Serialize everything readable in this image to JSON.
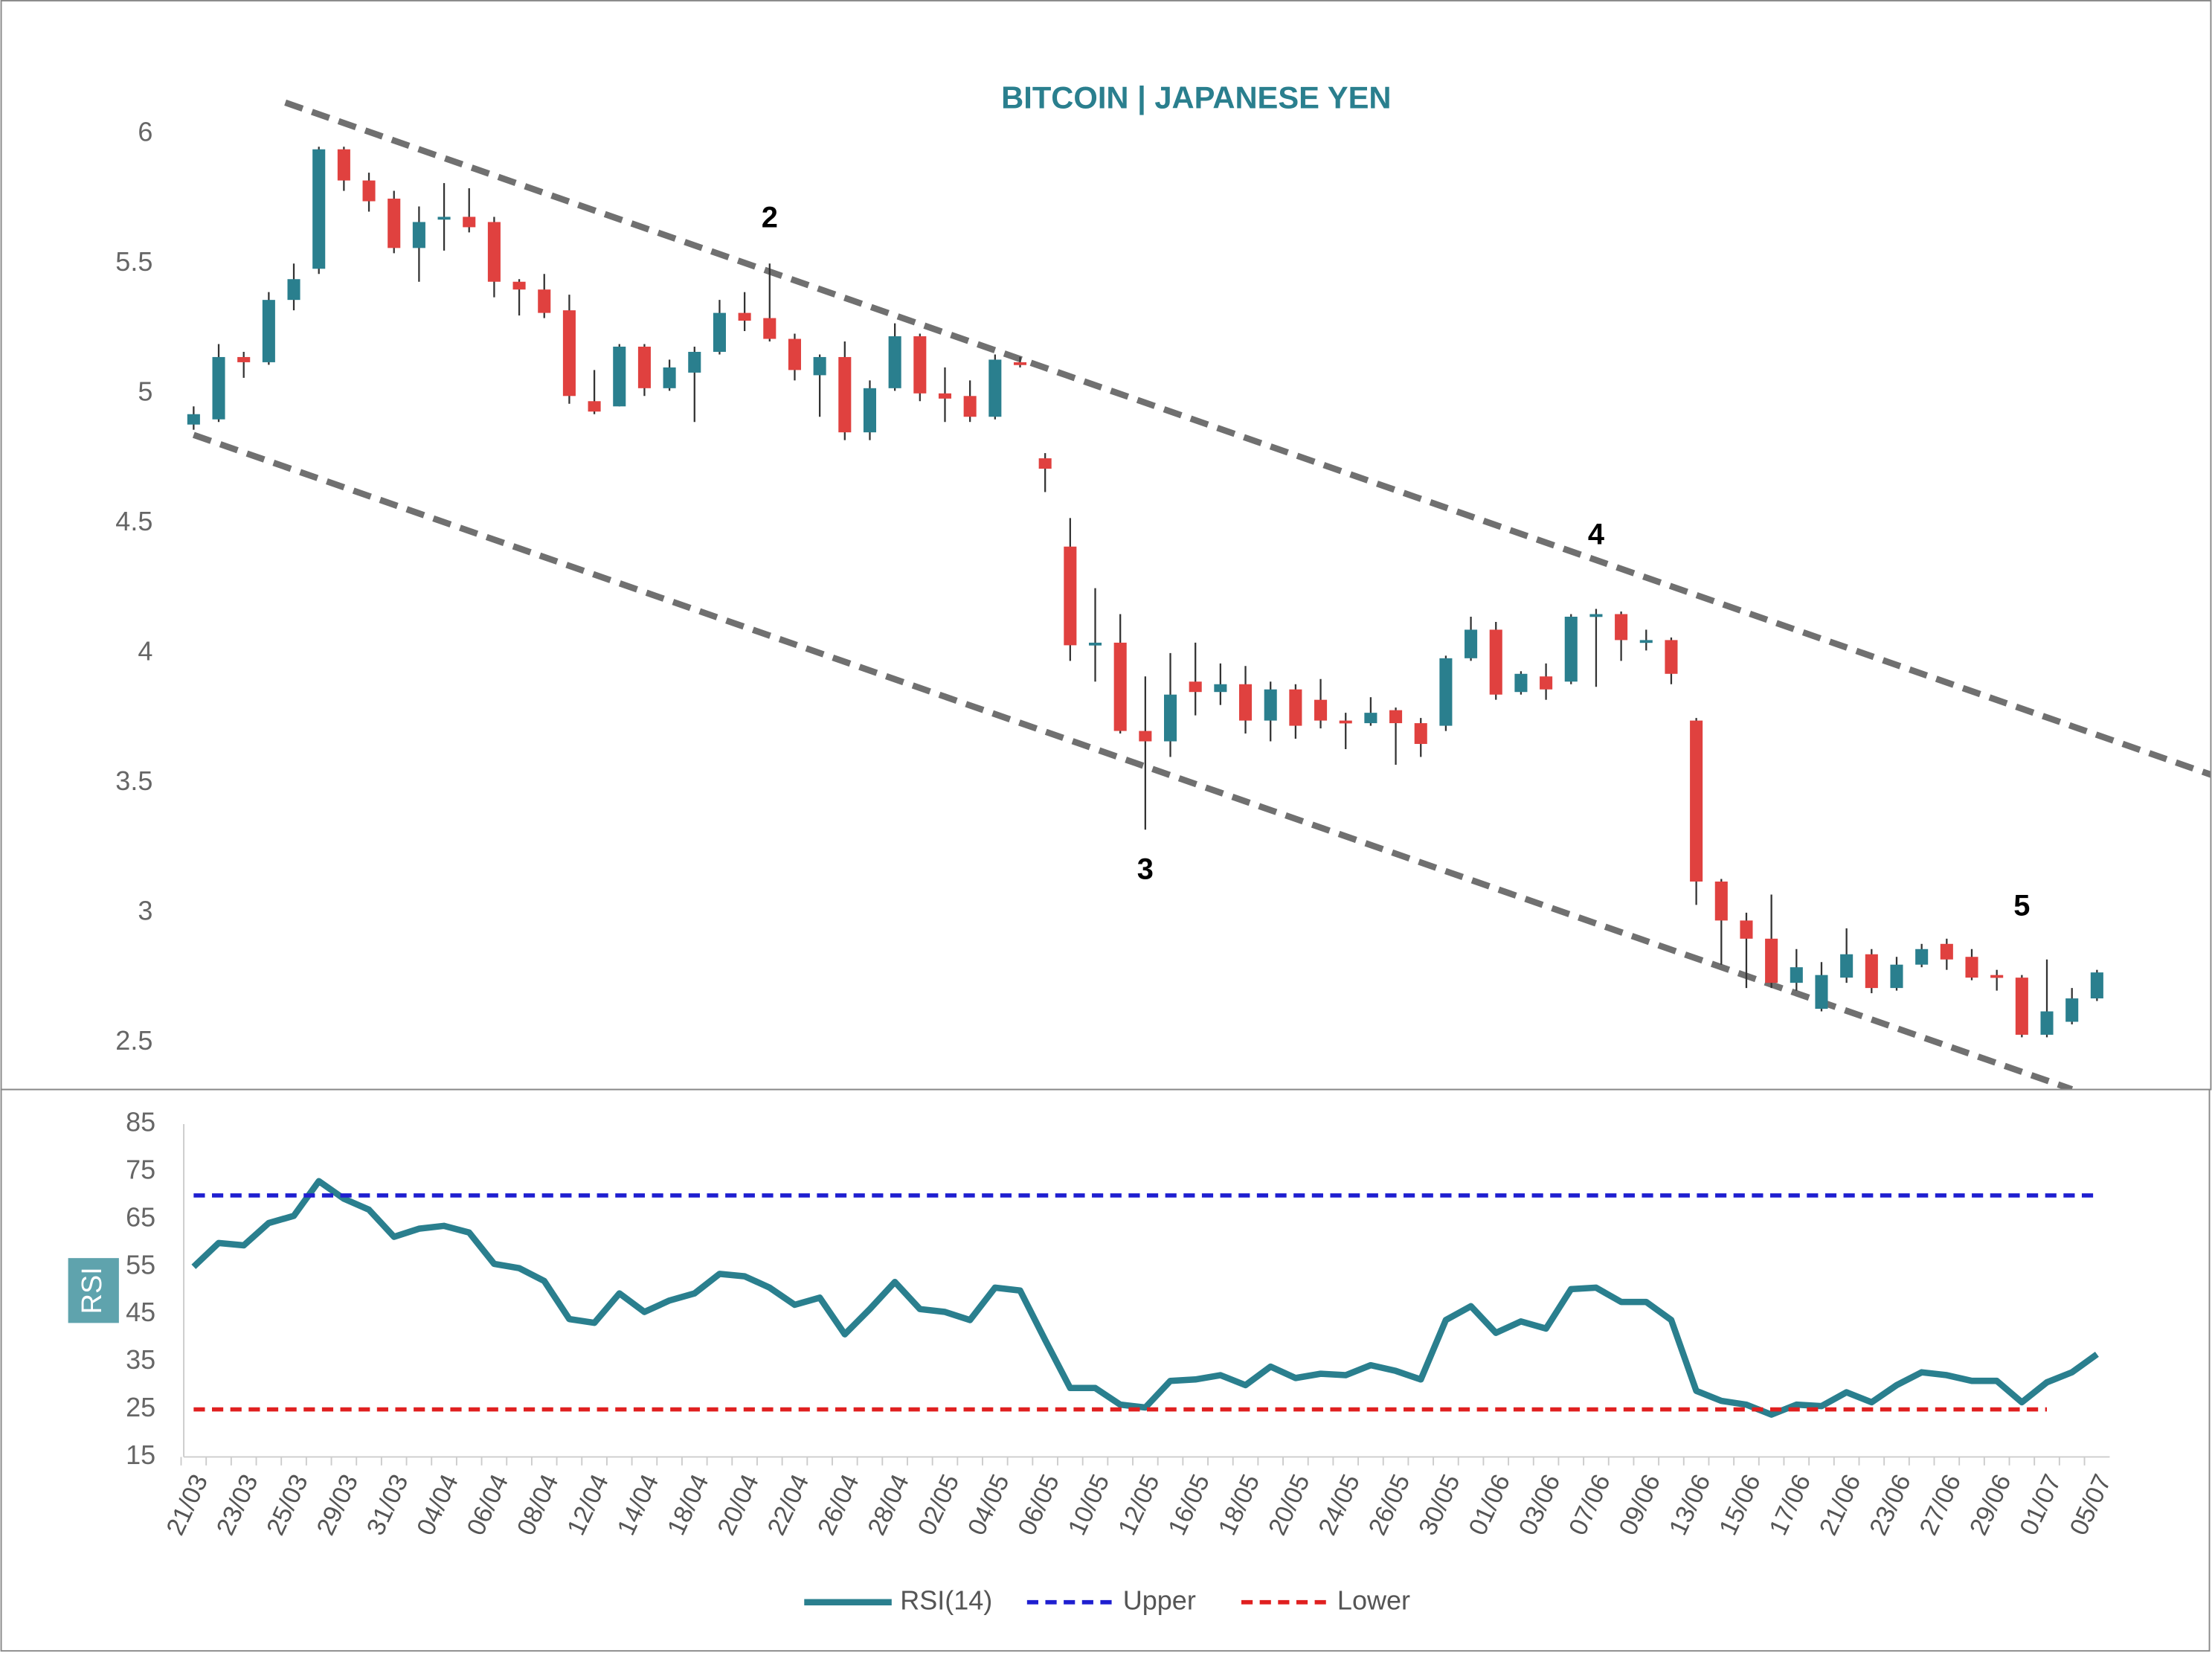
{
  "chart_data": [
    {
      "type": "candlestick",
      "title": "BITCOIN | JAPANESE YEN",
      "up_color": "#2a7f8e",
      "down_color": "#e0413f",
      "open": [
        4.88,
        4.9,
        5.14,
        5.12,
        5.36,
        5.48,
        5.94,
        5.82,
        5.75,
        5.56,
        5.67,
        5.68,
        5.66,
        5.43,
        5.4,
        5.32,
        4.97,
        4.95,
        5.18,
        5.02,
        5.08,
        5.16,
        5.31,
        5.29,
        5.21,
        5.07,
        5.14,
        4.85,
        5.02,
        5.22,
        5.0,
        4.99,
        4.91,
        5.12,
        4.75,
        4.41,
        4.03,
        4.04,
        3.7,
        3.66,
        3.89,
        3.85,
        3.88,
        3.74,
        3.86,
        3.82,
        3.74,
        3.73,
        3.78,
        3.73,
        3.72,
        3.98,
        4.09,
        3.85,
        3.91,
        3.89,
        4.14,
        4.15,
        4.04,
        4.05,
        3.74,
        3.12,
        2.97,
        2.9,
        2.73,
        2.63,
        2.75,
        2.84,
        2.71,
        2.8,
        2.88,
        2.83,
        2.76,
        2.75,
        2.53,
        2.58,
        2.67
      ],
      "high": [
        4.95,
        5.19,
        5.16,
        5.39,
        5.5,
        5.95,
        5.95,
        5.85,
        5.78,
        5.72,
        5.81,
        5.79,
        5.68,
        5.44,
        5.46,
        5.38,
        5.09,
        5.19,
        5.19,
        5.13,
        5.18,
        5.36,
        5.39,
        5.5,
        5.23,
        5.15,
        5.2,
        5.05,
        5.27,
        5.23,
        5.1,
        5.05,
        5.15,
        5.14,
        4.77,
        4.52,
        4.25,
        4.15,
        3.91,
        4.0,
        4.04,
        3.96,
        3.95,
        3.89,
        3.88,
        3.9,
        3.77,
        3.83,
        3.79,
        3.75,
        3.99,
        4.14,
        4.12,
        3.93,
        3.96,
        4.15,
        4.17,
        4.16,
        4.09,
        4.06,
        3.75,
        3.13,
        3.0,
        3.07,
        2.86,
        2.81,
        2.94,
        2.86,
        2.83,
        2.88,
        2.9,
        2.86,
        2.78,
        2.76,
        2.82,
        2.71,
        2.78
      ],
      "low": [
        4.86,
        4.89,
        5.06,
        5.11,
        5.32,
        5.46,
        5.78,
        5.7,
        5.54,
        5.43,
        5.55,
        5.62,
        5.37,
        5.3,
        5.29,
        4.96,
        4.92,
        4.95,
        4.99,
        5.01,
        4.89,
        5.15,
        5.24,
        5.2,
        5.05,
        4.91,
        4.82,
        4.82,
        5.01,
        4.97,
        4.89,
        4.89,
        4.9,
        5.1,
        4.62,
        3.97,
        3.89,
        3.69,
        3.32,
        3.6,
        3.76,
        3.8,
        3.69,
        3.66,
        3.67,
        3.71,
        3.63,
        3.72,
        3.57,
        3.6,
        3.7,
        3.97,
        3.82,
        3.84,
        3.82,
        3.88,
        3.87,
        3.97,
        4.01,
        3.88,
        3.03,
        2.8,
        2.71,
        2.71,
        2.7,
        2.62,
        2.73,
        2.69,
        2.7,
        2.79,
        2.78,
        2.74,
        2.7,
        2.52,
        2.52,
        2.57,
        2.66
      ],
      "close": [
        4.92,
        5.14,
        5.12,
        5.36,
        5.44,
        5.94,
        5.82,
        5.74,
        5.56,
        5.66,
        5.68,
        5.64,
        5.43,
        5.4,
        5.31,
        4.99,
        4.93,
        5.18,
        5.02,
        5.1,
        5.16,
        5.31,
        5.28,
        5.21,
        5.09,
        5.14,
        4.85,
        5.02,
        5.22,
        5.0,
        4.98,
        4.91,
        5.13,
        5.11,
        4.71,
        4.03,
        4.04,
        3.7,
        3.66,
        3.84,
        3.85,
        3.88,
        3.74,
        3.86,
        3.72,
        3.74,
        3.73,
        3.77,
        3.73,
        3.65,
        3.98,
        4.09,
        3.84,
        3.92,
        3.86,
        4.14,
        4.15,
        4.05,
        4.05,
        3.92,
        3.12,
        2.97,
        2.9,
        2.73,
        2.79,
        2.76,
        2.84,
        2.71,
        2.8,
        2.86,
        2.82,
        2.75,
        2.75,
        2.53,
        2.62,
        2.67,
        2.77
      ],
      "ylim": [
        2.3,
        6.2
      ],
      "yticks": [
        2.5,
        3.0,
        3.5,
        4.0,
        4.5,
        5.0,
        5.5,
        6.0
      ],
      "trendlines": [
        {
          "x": [
            3.66,
            80.6
          ],
          "y": [
            6.12,
            3.53
          ]
        },
        {
          "x": [
            0,
            75
          ],
          "y": [
            4.84,
            2.32
          ]
        }
      ],
      "trendline_color": "#707070",
      "annotations": [
        {
          "text": "2",
          "x": 23,
          "y": 5.67
        },
        {
          "text": "3",
          "x": 38,
          "y": 3.16
        },
        {
          "text": "4",
          "x": 56,
          "y": 4.45
        },
        {
          "text": "5",
          "x": 73,
          "y": 3.02
        }
      ]
    },
    {
      "type": "line",
      "ylabel": "RSI",
      "categories": [
        "21/03",
        null,
        "23/03",
        null,
        "25/03",
        null,
        "29/03",
        null,
        "31/03",
        null,
        "04/04",
        null,
        "06/04",
        null,
        "08/04",
        null,
        "12/04",
        null,
        "14/04",
        null,
        "18/04",
        null,
        "20/04",
        null,
        "22/04",
        null,
        "26/04",
        null,
        "28/04",
        null,
        "02/05",
        null,
        "04/05",
        null,
        "06/05",
        null,
        "10/05",
        null,
        "12/05",
        null,
        "16/05",
        null,
        "18/05",
        null,
        "20/05",
        null,
        "24/05",
        null,
        "26/05",
        null,
        "30/05",
        null,
        "01/06",
        null,
        "03/06",
        null,
        "07/06",
        null,
        "09/06",
        null,
        "13/06",
        null,
        "15/06",
        null,
        "17/06",
        null,
        "21/06",
        null,
        "23/06",
        null,
        "27/06",
        null,
        "29/06",
        null,
        "01/07",
        null,
        "05/07"
      ],
      "series": [
        {
          "name": "RSI(14)",
          "color": "#2a7f8e",
          "style": "solid",
          "values": [
            55.0,
            60,
            59.5,
            64.2,
            65.7,
            73,
            69.3,
            67,
            61.3,
            63,
            63.6,
            62.2,
            55.6,
            54.7,
            52,
            44,
            43.2,
            49.4,
            45.5,
            47.9,
            49.4,
            53.5,
            53,
            50.6,
            47,
            48.5,
            40.8,
            46.1,
            51.8,
            46.1,
            45.5,
            43.8,
            50.6,
            50,
            39.6,
            29.5,
            29.5,
            26,
            25.4,
            31,
            31.3,
            32.2,
            30.1,
            34,
            31.6,
            32.5,
            32.2,
            34.3,
            33.1,
            31.3,
            43.8,
            46.7,
            41.1,
            43.5,
            42,
            50.3,
            50.6,
            47.6,
            47.6,
            43.8,
            28.9,
            26.8,
            26,
            23.9,
            26,
            25.7,
            28.6,
            26.5,
            30.1,
            32.8,
            32.2,
            31,
            31,
            26.5,
            30.7,
            32.8,
            36.6
          ]
        },
        {
          "name": "Upper",
          "color": "#1f1fd0",
          "style": "dashed",
          "values": [
            70,
            70,
            70,
            70,
            70,
            70,
            70,
            70,
            70,
            70,
            70,
            70,
            70,
            70,
            70,
            70,
            70,
            70,
            70,
            70,
            70,
            70,
            70,
            70,
            70,
            70,
            70,
            70,
            70,
            70,
            70,
            70,
            70,
            70,
            70,
            70,
            70,
            70,
            70,
            70,
            70,
            70,
            70,
            70,
            70,
            70,
            70,
            70,
            70,
            70,
            70,
            70,
            70,
            70,
            70,
            70,
            70,
            70,
            70,
            70,
            70,
            70,
            70,
            70,
            70,
            70,
            70,
            70,
            70,
            70,
            70,
            70,
            70,
            70,
            70,
            70,
            70
          ]
        },
        {
          "name": "Lower",
          "color": "#e02020",
          "style": "dashed",
          "values": [
            25,
            25,
            25,
            25,
            25,
            25,
            25,
            25,
            25,
            25,
            25,
            25,
            25,
            25,
            25,
            25,
            25,
            25,
            25,
            25,
            25,
            25,
            25,
            25,
            25,
            25,
            25,
            25,
            25,
            25,
            25,
            25,
            25,
            25,
            25,
            25,
            25,
            25,
            25,
            25,
            25,
            25,
            25,
            25,
            25,
            25,
            25,
            25,
            25,
            25,
            25,
            25,
            25,
            25,
            25,
            25,
            25,
            25,
            25,
            25,
            25,
            25,
            25,
            25,
            25,
            25,
            25,
            25,
            25,
            25,
            25,
            25,
            25,
            25,
            25,
            null,
            null
          ]
        }
      ],
      "ylim": [
        15,
        85
      ],
      "yticks": [
        15,
        25,
        35,
        45,
        55,
        65,
        75,
        85
      ],
      "legend": "bottom"
    }
  ]
}
